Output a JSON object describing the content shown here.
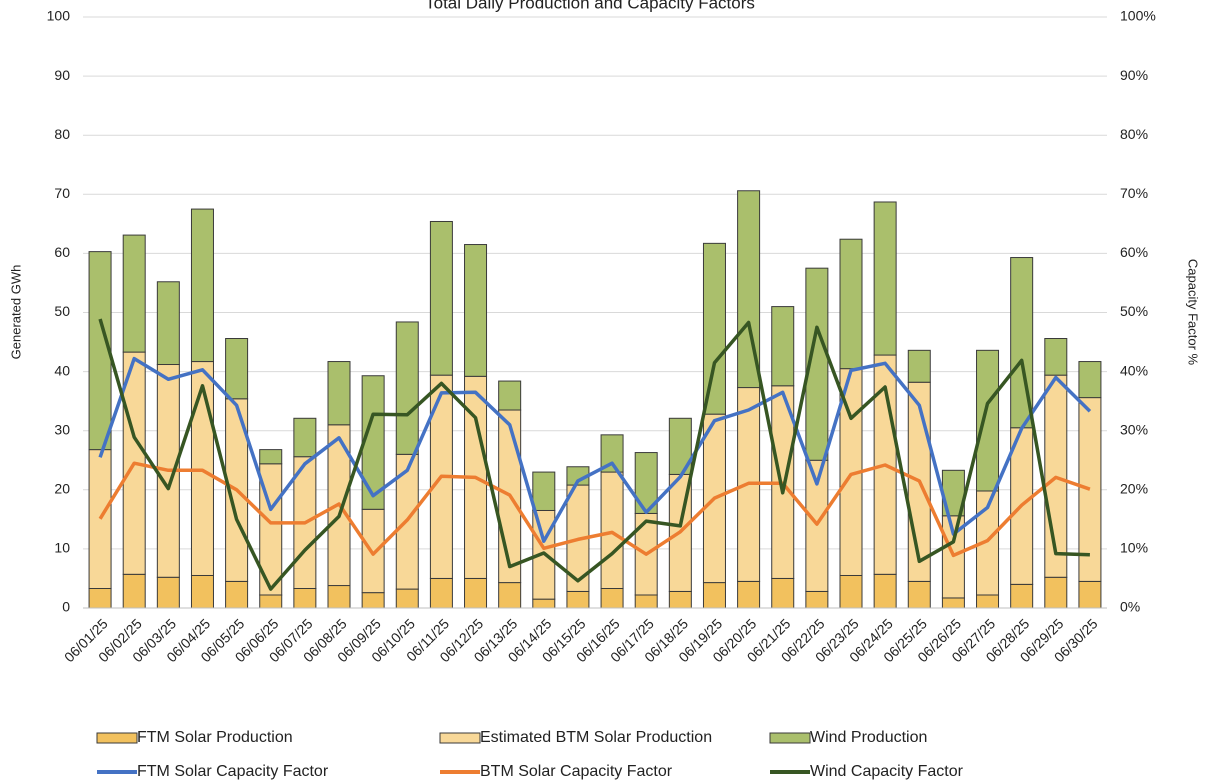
{
  "chart_data": {
    "type": "bar",
    "stacked": true,
    "title": "Total Daily Production and Capacity Factors",
    "y_label": "Generated GWh",
    "y2_label": "Capacity Factor %",
    "categories": [
      "06/01/25",
      "06/02/25",
      "06/03/25",
      "06/04/25",
      "06/05/25",
      "06/06/25",
      "06/07/25",
      "06/08/25",
      "06/09/25",
      "06/10/25",
      "06/11/25",
      "06/12/25",
      "06/13/25",
      "06/14/25",
      "06/15/25",
      "06/16/25",
      "06/17/25",
      "06/18/25",
      "06/19/25",
      "06/20/25",
      "06/21/25",
      "06/22/25",
      "06/23/25",
      "06/24/25",
      "06/25/25",
      "06/26/25",
      "06/27/25",
      "06/28/25",
      "06/29/25",
      "06/30/25"
    ],
    "ylim": [
      0,
      100
    ],
    "yticks": [
      0,
      10,
      20,
      30,
      40,
      50,
      60,
      70,
      80,
      90,
      100
    ],
    "y2lim": [
      0,
      100
    ],
    "y2ticks": [
      {
        "value": 0,
        "label": "0%"
      },
      {
        "value": 10,
        "label": "10%"
      },
      {
        "value": 20,
        "label": "20%"
      },
      {
        "value": 30,
        "label": "30%"
      },
      {
        "value": 40,
        "label": "40%"
      },
      {
        "value": 50,
        "label": "50%"
      },
      {
        "value": 60,
        "label": "60%"
      },
      {
        "value": 70,
        "label": "70%"
      },
      {
        "value": 80,
        "label": "80%"
      },
      {
        "value": 90,
        "label": "90%"
      },
      {
        "value": 100,
        "label": "100%"
      }
    ],
    "grid": true,
    "series": [
      {
        "name": "FTM Solar Production",
        "type": "bar",
        "color": "#f2c15e",
        "values": [
          3.3,
          5.7,
          5.2,
          5.5,
          4.5,
          2.2,
          3.3,
          3.8,
          2.6,
          3.2,
          5.0,
          5.0,
          4.3,
          1.5,
          2.8,
          3.3,
          2.2,
          2.8,
          4.3,
          4.5,
          5.0,
          2.8,
          5.5,
          5.7,
          4.5,
          1.7,
          2.2,
          4.0,
          5.2,
          4.5
        ]
      },
      {
        "name": "Estimated BTM Solar Production",
        "type": "bar",
        "color": "#f8d898",
        "values": [
          23.5,
          37.6,
          36.0,
          36.2,
          30.9,
          22.2,
          22.3,
          27.2,
          14.1,
          22.8,
          34.4,
          34.2,
          29.2,
          15.0,
          18.0,
          19.7,
          13.8,
          19.8,
          28.5,
          32.8,
          32.6,
          22.2,
          35.0,
          37.1,
          33.7,
          13.9,
          17.6,
          26.5,
          34.2,
          31.1
        ]
      },
      {
        "name": "Wind Production",
        "type": "bar",
        "color": "#aabf6c",
        "values": [
          33.5,
          19.8,
          14.0,
          25.8,
          10.2,
          2.4,
          6.5,
          10.7,
          22.6,
          22.4,
          26.0,
          22.3,
          4.9,
          6.5,
          3.1,
          6.3,
          10.3,
          9.5,
          28.9,
          33.3,
          13.4,
          32.5,
          21.9,
          25.9,
          5.4,
          7.7,
          23.8,
          28.8,
          6.2,
          6.1
        ]
      },
      {
        "name": "FTM Solar Capacity Factor",
        "type": "line",
        "axis": "y2",
        "color": "#4472c4",
        "values": [
          25.5,
          42.2,
          38.7,
          40.3,
          34.3,
          16.7,
          24.4,
          28.8,
          19.0,
          23.3,
          36.4,
          36.5,
          31.0,
          11.3,
          21.5,
          24.5,
          16.2,
          22.2,
          31.7,
          33.5,
          36.5,
          21.0,
          40.2,
          41.4,
          34.3,
          12.5,
          17.0,
          30.4,
          39.0,
          33.3
        ]
      },
      {
        "name": "BTM Solar Capacity Factor",
        "type": "line",
        "axis": "y2",
        "color": "#ed7d31",
        "values": [
          15.1,
          24.5,
          23.3,
          23.3,
          20.0,
          14.4,
          14.4,
          17.6,
          9.1,
          14.9,
          22.3,
          22.1,
          19.1,
          10.1,
          11.6,
          12.8,
          9.1,
          12.9,
          18.6,
          21.1,
          21.1,
          14.2,
          22.6,
          24.2,
          21.5,
          8.9,
          11.4,
          17.4,
          22.1,
          20.1
        ]
      },
      {
        "name": "Wind Capacity Factor",
        "type": "line",
        "axis": "y2",
        "color": "#375623",
        "values": [
          48.9,
          28.9,
          20.2,
          37.6,
          15.0,
          3.2,
          9.8,
          15.5,
          32.8,
          32.7,
          38.0,
          32.2,
          7.0,
          9.3,
          4.6,
          9.2,
          14.7,
          13.9,
          41.5,
          48.3,
          19.5,
          47.5,
          32.1,
          37.4,
          7.9,
          11.2,
          34.6,
          41.9,
          9.2,
          9.0
        ]
      }
    ]
  }
}
